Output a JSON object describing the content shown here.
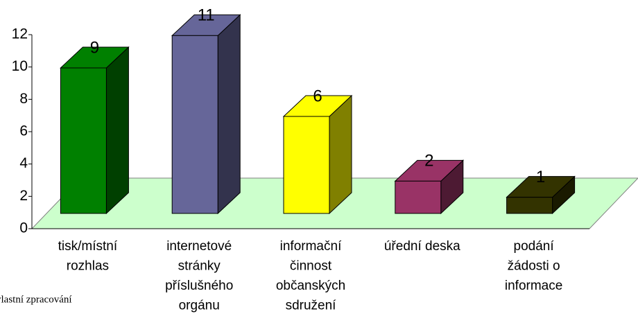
{
  "chart_data": {
    "type": "bar3d",
    "categories": [
      "tisk/místní\nrozhlas",
      "internetové\nstránky\npříslušného\norgánu",
      "informační\nčinnost\nobčanských\nsdružení",
      "úřední deska",
      "podání\nžádosti o\ninformace"
    ],
    "values": [
      9,
      11,
      6,
      2,
      1
    ],
    "colors": [
      "#008000",
      "#666699",
      "#ffff00",
      "#993366",
      "#333300"
    ],
    "ylim": [
      0,
      12
    ],
    "yticks": [
      0,
      2,
      4,
      6,
      8,
      10,
      12
    ],
    "floor_color": "#ccffcc",
    "source": "vlastní zpracování"
  }
}
